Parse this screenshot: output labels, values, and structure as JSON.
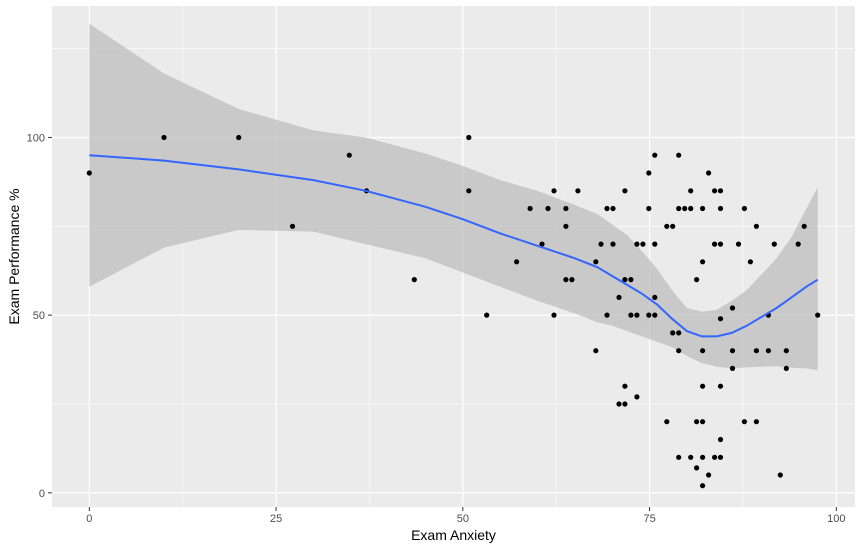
{
  "chart_data": {
    "type": "scatter",
    "title": "",
    "xlabel": "Exam Anxiety",
    "ylabel": "Exam Performance %",
    "xlim": [
      -5,
      102.5
    ],
    "ylim": [
      -4,
      137
    ],
    "x_ticks": [
      0,
      25,
      50,
      75,
      100
    ],
    "x_tick_labels": [
      "0",
      "25",
      "50",
      "75",
      "100"
    ],
    "y_ticks": [
      0,
      50,
      100
    ],
    "y_tick_labels": [
      "0",
      "50",
      "100"
    ],
    "grid": true,
    "legend": "none",
    "colors": {
      "panel": "#ebebeb",
      "grid": "#ffffff",
      "points": "#000000",
      "smooth_line": "#3366ff",
      "confidence_band": "#bdbdbd",
      "axis_text": "#4d4d4d",
      "axis_title": "#000000"
    },
    "points": [
      {
        "x": 0,
        "y": 90
      },
      {
        "x": 10,
        "y": 100
      },
      {
        "x": 20,
        "y": 100
      },
      {
        "x": 27.2,
        "y": 75
      },
      {
        "x": 34.8,
        "y": 95
      },
      {
        "x": 37.1,
        "y": 85
      },
      {
        "x": 43.5,
        "y": 60
      },
      {
        "x": 50.8,
        "y": 100
      },
      {
        "x": 50.8,
        "y": 85
      },
      {
        "x": 53.2,
        "y": 50
      },
      {
        "x": 57.2,
        "y": 65
      },
      {
        "x": 59,
        "y": 80
      },
      {
        "x": 60.6,
        "y": 70
      },
      {
        "x": 61.4,
        "y": 80
      },
      {
        "x": 62.2,
        "y": 85
      },
      {
        "x": 62.2,
        "y": 50
      },
      {
        "x": 63.8,
        "y": 80
      },
      {
        "x": 63.8,
        "y": 75
      },
      {
        "x": 63.8,
        "y": 60
      },
      {
        "x": 64.6,
        "y": 60
      },
      {
        "x": 65.4,
        "y": 85
      },
      {
        "x": 67.8,
        "y": 65
      },
      {
        "x": 67.8,
        "y": 40
      },
      {
        "x": 68.5,
        "y": 70
      },
      {
        "x": 69.3,
        "y": 80
      },
      {
        "x": 69.3,
        "y": 50
      },
      {
        "x": 70.1,
        "y": 80
      },
      {
        "x": 70.1,
        "y": 70
      },
      {
        "x": 70.9,
        "y": 55
      },
      {
        "x": 70.9,
        "y": 25
      },
      {
        "x": 71.7,
        "y": 85
      },
      {
        "x": 71.7,
        "y": 60
      },
      {
        "x": 71.7,
        "y": 30
      },
      {
        "x": 71.7,
        "y": 25
      },
      {
        "x": 72.5,
        "y": 60
      },
      {
        "x": 72.5,
        "y": 50
      },
      {
        "x": 73.3,
        "y": 70
      },
      {
        "x": 73.3,
        "y": 50
      },
      {
        "x": 73.3,
        "y": 27
      },
      {
        "x": 74.1,
        "y": 70
      },
      {
        "x": 74.9,
        "y": 90
      },
      {
        "x": 74.9,
        "y": 80
      },
      {
        "x": 74.9,
        "y": 50
      },
      {
        "x": 75.7,
        "y": 95
      },
      {
        "x": 75.7,
        "y": 70
      },
      {
        "x": 75.7,
        "y": 55
      },
      {
        "x": 75.7,
        "y": 50
      },
      {
        "x": 77.3,
        "y": 75
      },
      {
        "x": 77.3,
        "y": 20
      },
      {
        "x": 78.1,
        "y": 75
      },
      {
        "x": 78.1,
        "y": 45
      },
      {
        "x": 78.9,
        "y": 95
      },
      {
        "x": 78.9,
        "y": 80
      },
      {
        "x": 78.9,
        "y": 45
      },
      {
        "x": 78.9,
        "y": 40
      },
      {
        "x": 78.9,
        "y": 10
      },
      {
        "x": 79.7,
        "y": 80
      },
      {
        "x": 80.5,
        "y": 85
      },
      {
        "x": 80.5,
        "y": 80
      },
      {
        "x": 80.5,
        "y": 10
      },
      {
        "x": 81.3,
        "y": 60
      },
      {
        "x": 81.3,
        "y": 20
      },
      {
        "x": 81.3,
        "y": 7
      },
      {
        "x": 82.1,
        "y": 80
      },
      {
        "x": 82.1,
        "y": 65
      },
      {
        "x": 82.1,
        "y": 40
      },
      {
        "x": 82.1,
        "y": 30
      },
      {
        "x": 82.1,
        "y": 20
      },
      {
        "x": 82.1,
        "y": 10
      },
      {
        "x": 82.1,
        "y": 2
      },
      {
        "x": 82.9,
        "y": 90
      },
      {
        "x": 82.9,
        "y": 5
      },
      {
        "x": 83.7,
        "y": 85
      },
      {
        "x": 83.7,
        "y": 70
      },
      {
        "x": 83.7,
        "y": 10
      },
      {
        "x": 84.5,
        "y": 85
      },
      {
        "x": 84.5,
        "y": 80
      },
      {
        "x": 84.5,
        "y": 70
      },
      {
        "x": 84.5,
        "y": 49
      },
      {
        "x": 84.5,
        "y": 30
      },
      {
        "x": 84.5,
        "y": 15
      },
      {
        "x": 84.5,
        "y": 10
      },
      {
        "x": 86.1,
        "y": 52
      },
      {
        "x": 86.1,
        "y": 40
      },
      {
        "x": 86.1,
        "y": 35
      },
      {
        "x": 86.9,
        "y": 70
      },
      {
        "x": 87.7,
        "y": 80
      },
      {
        "x": 87.7,
        "y": 20
      },
      {
        "x": 88.5,
        "y": 65
      },
      {
        "x": 89.3,
        "y": 75
      },
      {
        "x": 89.3,
        "y": 40
      },
      {
        "x": 89.3,
        "y": 20
      },
      {
        "x": 90.9,
        "y": 50
      },
      {
        "x": 90.9,
        "y": 40
      },
      {
        "x": 91.7,
        "y": 70
      },
      {
        "x": 92.5,
        "y": 5
      },
      {
        "x": 93.3,
        "y": 40
      },
      {
        "x": 93.3,
        "y": 35
      },
      {
        "x": 94.9,
        "y": 70
      },
      {
        "x": 95.7,
        "y": 75
      },
      {
        "x": 97.5,
        "y": 50
      }
    ],
    "smooth": {
      "x": [
        0,
        10,
        20,
        30,
        37,
        45,
        50,
        55,
        60,
        65,
        68,
        70,
        72,
        74,
        76,
        78,
        80,
        82,
        84,
        86,
        88,
        90,
        92,
        94,
        96,
        97.5
      ],
      "y": [
        95,
        93.5,
        91,
        88,
        85,
        80.5,
        77,
        73,
        69.5,
        66,
        63.5,
        61,
        58.5,
        56,
        53,
        49,
        45.5,
        44,
        44,
        45,
        47,
        49.5,
        52,
        55,
        58,
        60
      ],
      "lower": [
        58,
        69,
        74,
        73.5,
        70,
        66,
        62,
        58,
        54,
        50.5,
        48,
        47,
        45.5,
        44,
        42.5,
        41,
        38.5,
        36.5,
        35.5,
        35,
        35.3,
        35.5,
        35.6,
        35.2,
        35,
        34.5
      ],
      "upper": [
        132,
        118,
        108,
        102,
        100,
        95.5,
        92,
        88,
        85,
        81,
        78.5,
        75.5,
        72.5,
        68,
        63,
        57,
        52,
        51,
        51.5,
        54,
        57,
        61.5,
        66,
        72,
        80,
        86
      ]
    }
  }
}
